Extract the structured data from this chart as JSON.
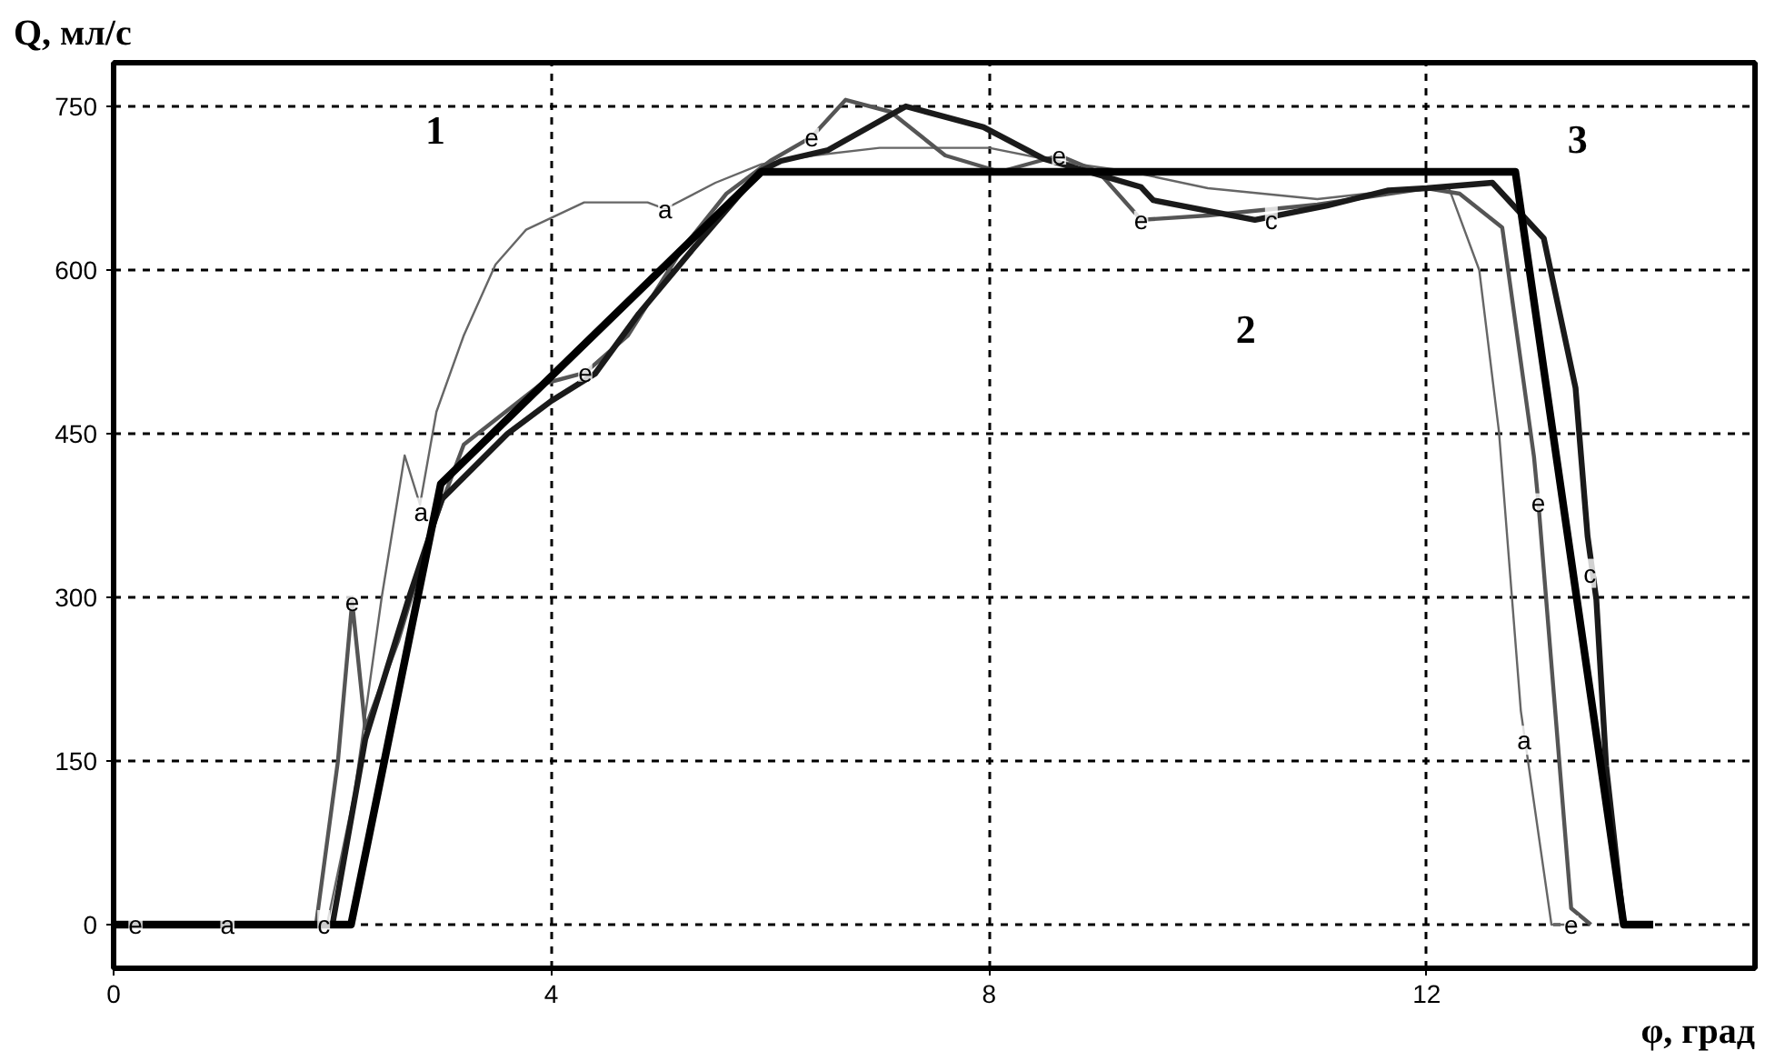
{
  "chart_data": {
    "type": "line",
    "xlabel": "φ, град",
    "ylabel": "Q, мл/с",
    "xlim": [
      0,
      15
    ],
    "ylim": [
      -40,
      790
    ],
    "xticks": [
      0,
      4,
      8,
      12
    ],
    "yticks": [
      0,
      150,
      300,
      450,
      600,
      750
    ],
    "grid": true,
    "line_style": "solid",
    "marker": "none",
    "series": [
      {
        "color": "#666666",
        "x": [
          0,
          1.95,
          2.2,
          2.45,
          2.66,
          2.8,
          2.95,
          3.2,
          3.49,
          3.77,
          4.3,
          4.88,
          5.04,
          5.5,
          5.92,
          6.4,
          7.0,
          8.0,
          8.6,
          9.3,
          10.0,
          11.0,
          11.9,
          12.2,
          12.48,
          12.66,
          12.86,
          13.14,
          13.3
        ],
        "values": [
          0,
          0,
          120,
          300,
          430,
          385,
          470,
          540,
          605,
          637,
          662,
          662,
          656,
          680,
          697,
          705,
          712,
          712,
          700,
          690,
          675,
          665,
          675,
          676,
          600,
          452,
          196,
          0,
          0
        ]
      },
      {
        "color": "#555555",
        "x": [
          0,
          1.85,
          2.05,
          2.18,
          2.3,
          2.6,
          2.9,
          3.2,
          3.9,
          4.31,
          4.7,
          5.2,
          5.6,
          6.0,
          6.38,
          6.69,
          7.1,
          7.6,
          8.1,
          8.64,
          9.0,
          9.39,
          10.0,
          11.0,
          12.0,
          12.3,
          12.69,
          12.98,
          13.02,
          13.32,
          13.5
        ],
        "values": [
          0,
          0,
          150,
          296,
          180,
          260,
          360,
          440,
          495,
          506,
          540,
          620,
          670,
          700,
          722,
          756,
          745,
          705,
          690,
          705,
          690,
          646,
          650,
          660,
          675,
          670,
          639,
          429,
          387,
          15,
          0
        ]
      },
      {
        "color": "#1a1a1a",
        "x": [
          0,
          2.0,
          2.3,
          2.7,
          3.0,
          3.2,
          3.6,
          4.0,
          4.4,
          4.8,
          5.3,
          5.9,
          6.1,
          6.53,
          7.24,
          7.95,
          8.5,
          9.39,
          9.5,
          10.43,
          11.09,
          11.65,
          12.0,
          12.6,
          13.07,
          13.36,
          13.47,
          13.55,
          13.64,
          13.8
        ],
        "values": [
          0,
          0,
          170,
          300,
          390,
          410,
          450,
          480,
          505,
          560,
          620,
          690,
          700,
          710,
          750,
          731,
          702,
          676,
          664,
          646,
          659,
          673,
          675,
          680,
          629,
          492,
          356,
          298,
          145,
          0
        ]
      },
      {
        "color": "#000000",
        "x": [
          0,
          2.17,
          2.99,
          5.92,
          12.81,
          13.8,
          14.07
        ],
        "values": [
          0,
          0,
          404,
          690,
          690,
          0,
          0
        ]
      }
    ],
    "annotations": [
      {
        "text": "1",
        "x": 3.77,
        "y": 637
      },
      {
        "text": "2",
        "x": 10.43,
        "y": 646
      },
      {
        "text": "3",
        "x": 12.88,
        "y": 640
      },
      {
        "text": "e",
        "x": 0.2,
        "y": 0
      },
      {
        "text": "a",
        "x": 1.04,
        "y": 0
      },
      {
        "text": "c",
        "x": 1.92,
        "y": 0
      },
      {
        "text": "e",
        "x": 2.18,
        "y": 296
      },
      {
        "text": "a",
        "x": 2.81,
        "y": 378
      },
      {
        "text": "e",
        "x": 4.31,
        "y": 506
      },
      {
        "text": "a",
        "x": 5.04,
        "y": 656
      },
      {
        "text": "e",
        "x": 6.38,
        "y": 722
      },
      {
        "text": "e",
        "x": 8.64,
        "y": 705
      },
      {
        "text": "e",
        "x": 9.39,
        "y": 646
      },
      {
        "text": "c",
        "x": 10.58,
        "y": 646
      },
      {
        "text": "e",
        "x": 13.02,
        "y": 387
      },
      {
        "text": "c",
        "x": 13.49,
        "y": 322
      },
      {
        "text": "a",
        "x": 12.89,
        "y": 169
      },
      {
        "text": "e",
        "x": 13.32,
        "y": 0
      }
    ]
  }
}
